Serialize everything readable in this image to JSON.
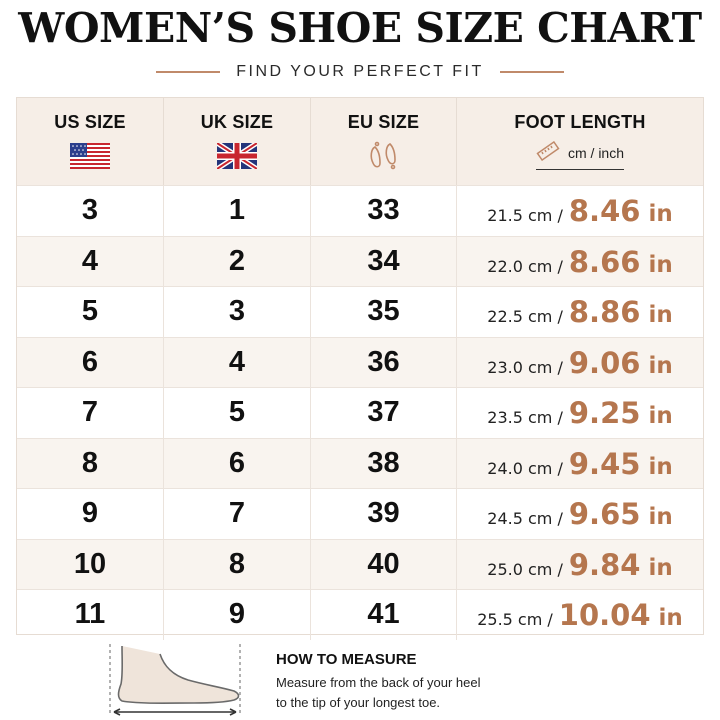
{
  "header": {
    "title": "WOMEN’S SHOE SIZE CHART",
    "subtitle": "FIND YOUR PERFECT FIT"
  },
  "table": {
    "columns": [
      {
        "label": "US SIZE",
        "icon": "us-flag-icon"
      },
      {
        "label": "UK SIZE",
        "icon": "uk-flag-icon"
      },
      {
        "label": "EU SIZE",
        "icon": "footprints-icon"
      },
      {
        "label": "FOOT LENGTH",
        "icon": "ruler-icon",
        "unit": "cm / inch"
      }
    ],
    "rows": [
      {
        "us": "3",
        "uk": "1",
        "eu": "33",
        "cm": "21.5 cm /",
        "inch": "8.46",
        "inch_unit": "in"
      },
      {
        "us": "4",
        "uk": "2",
        "eu": "34",
        "cm": "22.0 cm /",
        "inch": "8.66",
        "inch_unit": "in"
      },
      {
        "us": "5",
        "uk": "3",
        "eu": "35",
        "cm": "22.5 cm /",
        "inch": "8.86",
        "inch_unit": "in"
      },
      {
        "us": "6",
        "uk": "4",
        "eu": "36",
        "cm": "23.0 cm /",
        "inch": "9.06",
        "inch_unit": "in"
      },
      {
        "us": "7",
        "uk": "5",
        "eu": "37",
        "cm": "23.5 cm /",
        "inch": "9.25",
        "inch_unit": "in"
      },
      {
        "us": "8",
        "uk": "6",
        "eu": "38",
        "cm": "24.0 cm /",
        "inch": "9.45",
        "inch_unit": "in"
      },
      {
        "us": "9",
        "uk": "7",
        "eu": "39",
        "cm": "24.5 cm /",
        "inch": "9.65",
        "inch_unit": "in"
      },
      {
        "us": "10",
        "uk": "8",
        "eu": "40",
        "cm": "25.0 cm /",
        "inch": "9.84",
        "inch_unit": "in"
      },
      {
        "us": "11",
        "uk": "9",
        "eu": "41",
        "cm": "25.5 cm /",
        "inch": "10.04",
        "inch_unit": "in"
      }
    ]
  },
  "how_to": {
    "title": "HOW TO MEASURE",
    "line1": "Measure from the back of your heel",
    "line2": "to the tip of your longest toe.",
    "icon": "foot-measure-icon"
  },
  "colors": {
    "accent": "#b5764e",
    "header_bg": "#f6eee7",
    "alt_row_bg": "#f9f4ef"
  }
}
